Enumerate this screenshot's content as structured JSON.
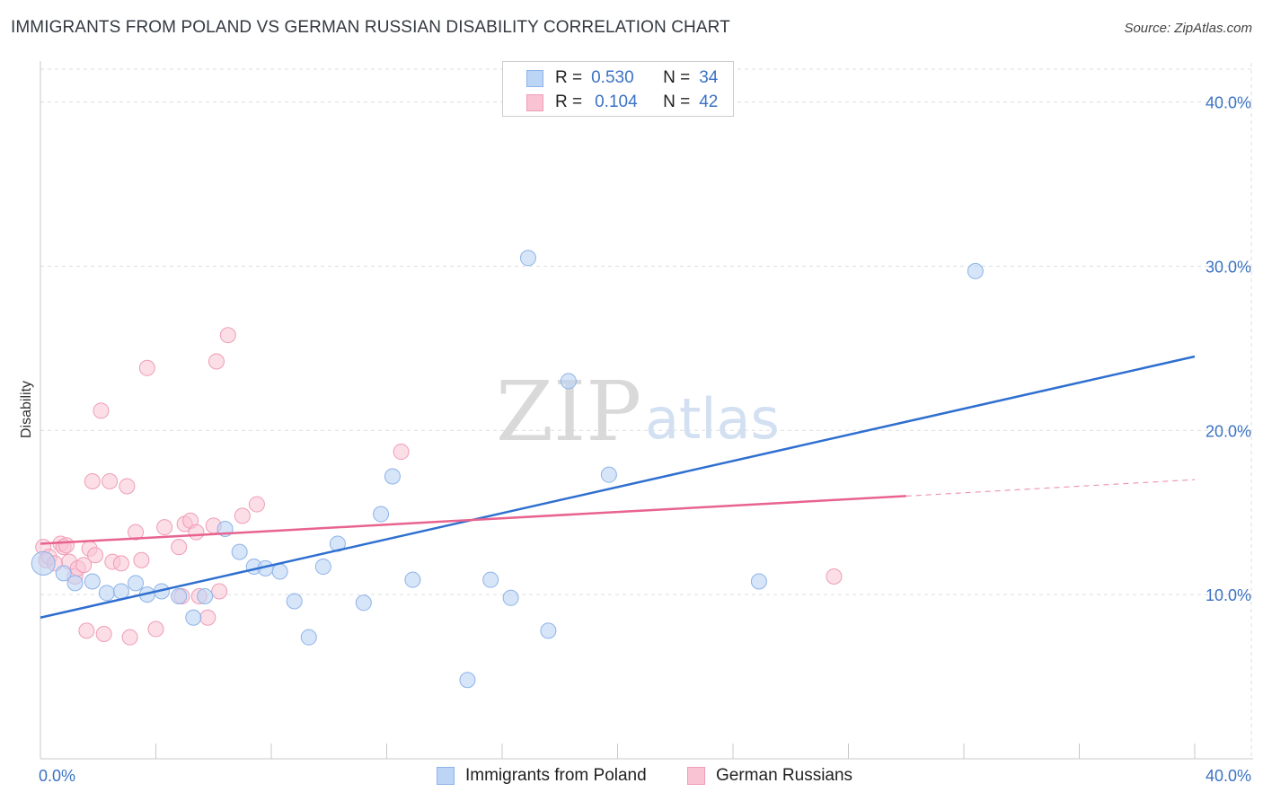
{
  "title": "IMMIGRANTS FROM POLAND VS GERMAN RUSSIAN DISABILITY CORRELATION CHART",
  "source": "Source: ZipAtlas.com",
  "watermark": {
    "zip": "ZIP",
    "atlas": "atlas"
  },
  "legend_top": {
    "rows": [
      {
        "r_label": "R =",
        "r_value": "0.530",
        "n_label": "N =",
        "n_value": "34"
      },
      {
        "r_label": "R =",
        "r_value": "0.104",
        "n_label": "N =",
        "n_value": "42"
      }
    ]
  },
  "colors": {
    "blue_fill": "#bcd4f5",
    "blue_stroke": "#8db3e8",
    "blue_line": "#2f6fd0",
    "pink_fill": "#f9c3d4",
    "pink_stroke": "#ef9db8",
    "pink_line": "#e8638e",
    "tick_text": "#3b72c4",
    "grid": "#dddddd"
  },
  "chart_data": {
    "type": "scatter",
    "title": "IMMIGRANTS FROM POLAND VS GERMAN RUSSIAN DISABILITY CORRELATION CHART",
    "xlabel": "",
    "ylabel": "Disability",
    "xlim": [
      0,
      40
    ],
    "ylim": [
      0,
      42
    ],
    "x_tick_labels": [
      "0.0%",
      "40.0%"
    ],
    "y_ticks": [
      10,
      20,
      30,
      40
    ],
    "y_tick_labels": [
      "10.0%",
      "20.0%",
      "30.0%",
      "40.0%"
    ],
    "series": [
      {
        "name": "Immigrants from Poland",
        "color": "#bcd4f5",
        "r": 0.53,
        "n": 34,
        "trend": {
          "x0": 0,
          "y0": 8.6,
          "x1": 40,
          "y1": 24.5
        },
        "points": [
          [
            0.1,
            11.9
          ],
          [
            0.8,
            11.3
          ],
          [
            1.2,
            10.7
          ],
          [
            1.8,
            10.8
          ],
          [
            2.3,
            10.1
          ],
          [
            2.8,
            10.2
          ],
          [
            3.3,
            10.7
          ],
          [
            3.7,
            10.0
          ],
          [
            4.2,
            10.2
          ],
          [
            4.8,
            9.9
          ],
          [
            5.3,
            8.6
          ],
          [
            5.7,
            9.9
          ],
          [
            6.4,
            14.0
          ],
          [
            6.9,
            12.6
          ],
          [
            7.4,
            11.7
          ],
          [
            7.8,
            11.6
          ],
          [
            8.3,
            11.4
          ],
          [
            8.8,
            9.6
          ],
          [
            9.3,
            7.4
          ],
          [
            9.8,
            11.7
          ],
          [
            10.3,
            13.1
          ],
          [
            11.2,
            9.5
          ],
          [
            11.8,
            14.9
          ],
          [
            12.2,
            17.2
          ],
          [
            12.9,
            10.9
          ],
          [
            14.8,
            4.8
          ],
          [
            15.6,
            10.9
          ],
          [
            16.3,
            9.8
          ],
          [
            16.9,
            30.5
          ],
          [
            17.6,
            7.8
          ],
          [
            18.3,
            23.0
          ],
          [
            19.7,
            17.3
          ],
          [
            24.9,
            10.8
          ],
          [
            32.4,
            29.7
          ]
        ]
      },
      {
        "name": "German Russians",
        "color": "#f9c3d4",
        "r": 0.104,
        "n": 42,
        "trend": {
          "x0": 0,
          "y0": 13.1,
          "x1": 30,
          "y1": 16.0,
          "x_dash_end": 40,
          "y_dash_end": 17.0
        },
        "points": [
          [
            0.1,
            12.9
          ],
          [
            0.2,
            12.1
          ],
          [
            0.3,
            12.3
          ],
          [
            0.5,
            11.9
          ],
          [
            0.7,
            13.1
          ],
          [
            0.8,
            12.9
          ],
          [
            0.9,
            13.0
          ],
          [
            1.0,
            12.0
          ],
          [
            1.2,
            11.1
          ],
          [
            1.3,
            11.6
          ],
          [
            1.5,
            11.8
          ],
          [
            1.6,
            7.8
          ],
          [
            1.7,
            12.8
          ],
          [
            1.8,
            16.9
          ],
          [
            1.9,
            12.4
          ],
          [
            2.1,
            21.2
          ],
          [
            2.2,
            7.6
          ],
          [
            2.4,
            16.9
          ],
          [
            2.5,
            12.0
          ],
          [
            2.8,
            11.9
          ],
          [
            3.0,
            16.6
          ],
          [
            3.1,
            7.4
          ],
          [
            3.3,
            13.8
          ],
          [
            3.5,
            12.1
          ],
          [
            3.7,
            23.8
          ],
          [
            4.0,
            7.9
          ],
          [
            4.3,
            14.1
          ],
          [
            4.8,
            12.9
          ],
          [
            4.9,
            9.9
          ],
          [
            5.0,
            14.3
          ],
          [
            5.2,
            14.5
          ],
          [
            5.4,
            13.8
          ],
          [
            5.5,
            9.9
          ],
          [
            5.8,
            8.6
          ],
          [
            6.0,
            14.2
          ],
          [
            6.1,
            24.2
          ],
          [
            6.2,
            10.2
          ],
          [
            6.5,
            25.8
          ],
          [
            7.0,
            14.8
          ],
          [
            7.5,
            15.5
          ],
          [
            12.5,
            18.7
          ],
          [
            27.5,
            11.1
          ]
        ]
      }
    ],
    "legend": [
      "Immigrants from Poland",
      "German Russians"
    ]
  }
}
